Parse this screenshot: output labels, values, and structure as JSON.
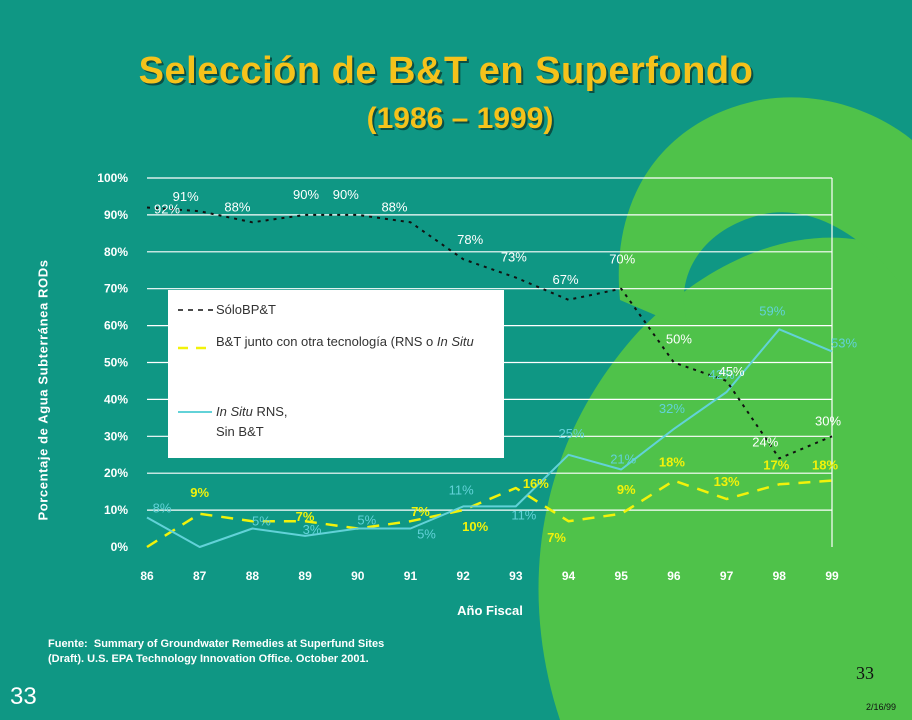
{
  "slide": {
    "title_line1": "Selección de B&T en Superfondo",
    "title_line2": "(1986 – 1999)",
    "source_label": "Fuente:",
    "source_text": "Summary of Groundwater Remedies at Superfund Sites (Draft).  U.S. EPA Technology Innovation Office. October 2001.",
    "page_number_left": "33",
    "page_number_right": "33",
    "date": "2/16/99"
  },
  "colors": {
    "background": "#0f9784",
    "decoration": "#4fc24a",
    "title": "#f5c21b",
    "series_bpt": "#111111",
    "series_bt_rns": "#f2f20a",
    "series_insitu": "#62d2d8"
  },
  "chart_data": {
    "type": "line",
    "xlabel": "Año Fiscal",
    "ylabel": "Porcentaje de Agua Subterránea RODs",
    "x": [
      "86",
      "87",
      "88",
      "89",
      "90",
      "91",
      "92",
      "93",
      "94",
      "95",
      "96",
      "97",
      "98",
      "99"
    ],
    "ylim": [
      0,
      100
    ],
    "yticks": [
      "0%",
      "10%",
      "20%",
      "30%",
      "40%",
      "50%",
      "60%",
      "70%",
      "80%",
      "90%",
      "100%"
    ],
    "grid": "horizontal",
    "legend_position": "center-left",
    "series": [
      {
        "name": "SóloBP&T",
        "key": "bpt",
        "values": [
          92,
          91,
          88,
          90,
          90,
          88,
          78,
          73,
          67,
          70,
          50,
          45,
          24,
          30
        ]
      },
      {
        "name": "B&T junto con otra tecnología (RNS o In Situ",
        "key": "bt_rns",
        "values": [
          0,
          9,
          7,
          7,
          5,
          7,
          10,
          16,
          7,
          9,
          18,
          13,
          17,
          18
        ]
      },
      {
        "name": "In Situ RNS, Sin B&T",
        "key": "insitu",
        "values": [
          8,
          0,
          5,
          3,
          5,
          5,
          11,
          11,
          25,
          21,
          32,
          42,
          59,
          53
        ]
      }
    ],
    "data_labels": {
      "bpt": [
        "92%",
        "91%",
        "88%",
        "90%",
        "90%",
        "88%",
        "78%",
        "73%",
        "67%",
        "70%",
        "50%",
        "45%",
        "24%",
        "30%"
      ],
      "bt_rns": [
        "",
        "9%",
        "",
        "7%",
        "",
        "7%",
        "10%",
        "16%",
        "7%",
        "9%",
        "18%",
        "13%",
        "17%",
        "18%"
      ],
      "insitu": [
        "8%",
        "",
        "5%",
        "3%",
        "5%",
        "5%",
        "11%",
        "11%",
        "25%",
        "21%",
        "32%",
        "42%",
        "59%",
        "53%"
      ]
    }
  },
  "legend": {
    "item1_text": "SóloBP&T",
    "item2_text_a": "B&T junto con otra tecnología (RNS o ",
    "item2_text_b": "In Situ",
    "item3_text_a": "In Situ",
    "item3_text_b": " RNS,",
    "item3_text_c": "Sin B&T"
  }
}
